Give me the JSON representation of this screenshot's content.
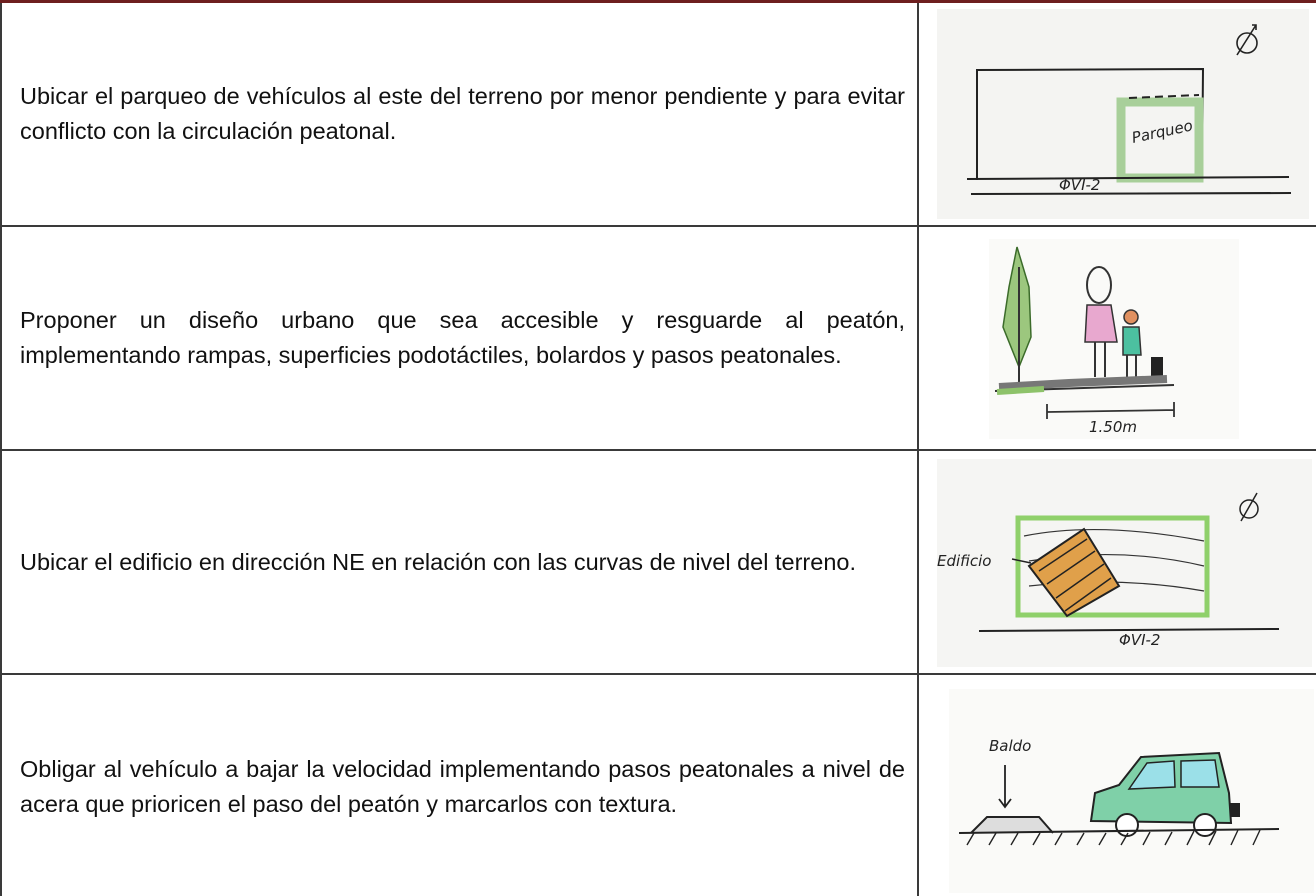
{
  "table": {
    "rows": [
      {
        "text": "Ubicar el parqueo de vehículos al este del terreno por menor pendiente y para evitar conflicto con la circulación peatonal.",
        "sketch": {
          "labels": [
            "Parqueo",
            "ΦVI-2"
          ]
        }
      },
      {
        "text": "Proponer un diseño urbano que sea accesible y resguarde al peatón, implementando rampas, superficies podotáctiles, bolardos y pasos peatonales.",
        "sketch": {
          "labels": [
            "1.50m"
          ]
        }
      },
      {
        "text": "Ubicar el edificio en dirección NE en relación con las curvas de nivel del terreno.",
        "sketch": {
          "labels": [
            "Edificio",
            "ΦVI-2"
          ]
        }
      },
      {
        "text": "Obligar al vehículo a bajar la velocidad implementando pasos peatonales a nivel de acera que prioricen el paso del peatón y marcarlos con textura.",
        "sketch": {
          "labels": [
            "Baldo"
          ]
        }
      }
    ]
  }
}
